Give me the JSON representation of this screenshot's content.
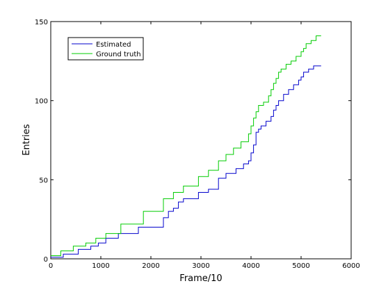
{
  "chart_data": {
    "type": "line",
    "xlabel": "Frame/10",
    "ylabel": "Entries",
    "xlim": [
      0,
      6000
    ],
    "ylim": [
      0,
      150
    ],
    "xticks": [
      0,
      1000,
      2000,
      3000,
      4000,
      5000,
      6000
    ],
    "yticks": [
      0,
      50,
      100,
      150
    ],
    "xtick_labels": [
      "0",
      "1000",
      "2000",
      "3000",
      "4000",
      "5000",
      "6000"
    ],
    "ytick_labels": [
      "0",
      "50",
      "100",
      "150"
    ],
    "grid": false,
    "legend_position": "top-left",
    "series": [
      {
        "name": "Estimated",
        "color": "#0000cc",
        "step": true,
        "x": [
          0,
          250,
          550,
          800,
          950,
          1100,
          1350,
          1750,
          2250,
          2350,
          2450,
          2550,
          2650,
          2950,
          3150,
          3350,
          3500,
          3700,
          3850,
          3950,
          4000,
          4050,
          4100,
          4150,
          4200,
          4300,
          4400,
          4450,
          4500,
          4550,
          4650,
          4750,
          4850,
          4950,
          5000,
          5050,
          5150,
          5250,
          5400
        ],
        "y": [
          1,
          3,
          6,
          8,
          10,
          13,
          16,
          20,
          26,
          30,
          32,
          36,
          38,
          42,
          44,
          51,
          54,
          57,
          60,
          62,
          67,
          72,
          80,
          82,
          84,
          87,
          90,
          94,
          97,
          100,
          104,
          107,
          110,
          113,
          115,
          118,
          120,
          122,
          122
        ]
      },
      {
        "name": "Ground truth",
        "color": "#00cc00",
        "step": true,
        "x": [
          0,
          200,
          450,
          700,
          900,
          1100,
          1400,
          1850,
          2250,
          2450,
          2650,
          2950,
          3150,
          3350,
          3500,
          3650,
          3800,
          3950,
          4000,
          4050,
          4100,
          4150,
          4250,
          4350,
          4400,
          4450,
          4500,
          4550,
          4600,
          4700,
          4800,
          4900,
          5000,
          5050,
          5100,
          5200,
          5300,
          5400
        ],
        "y": [
          2,
          5,
          8,
          10,
          13,
          16,
          22,
          30,
          38,
          42,
          46,
          52,
          56,
          62,
          66,
          70,
          74,
          79,
          84,
          89,
          93,
          97,
          99,
          103,
          107,
          111,
          114,
          118,
          120,
          123,
          125,
          128,
          131,
          133,
          136,
          138,
          141,
          141
        ]
      }
    ]
  }
}
